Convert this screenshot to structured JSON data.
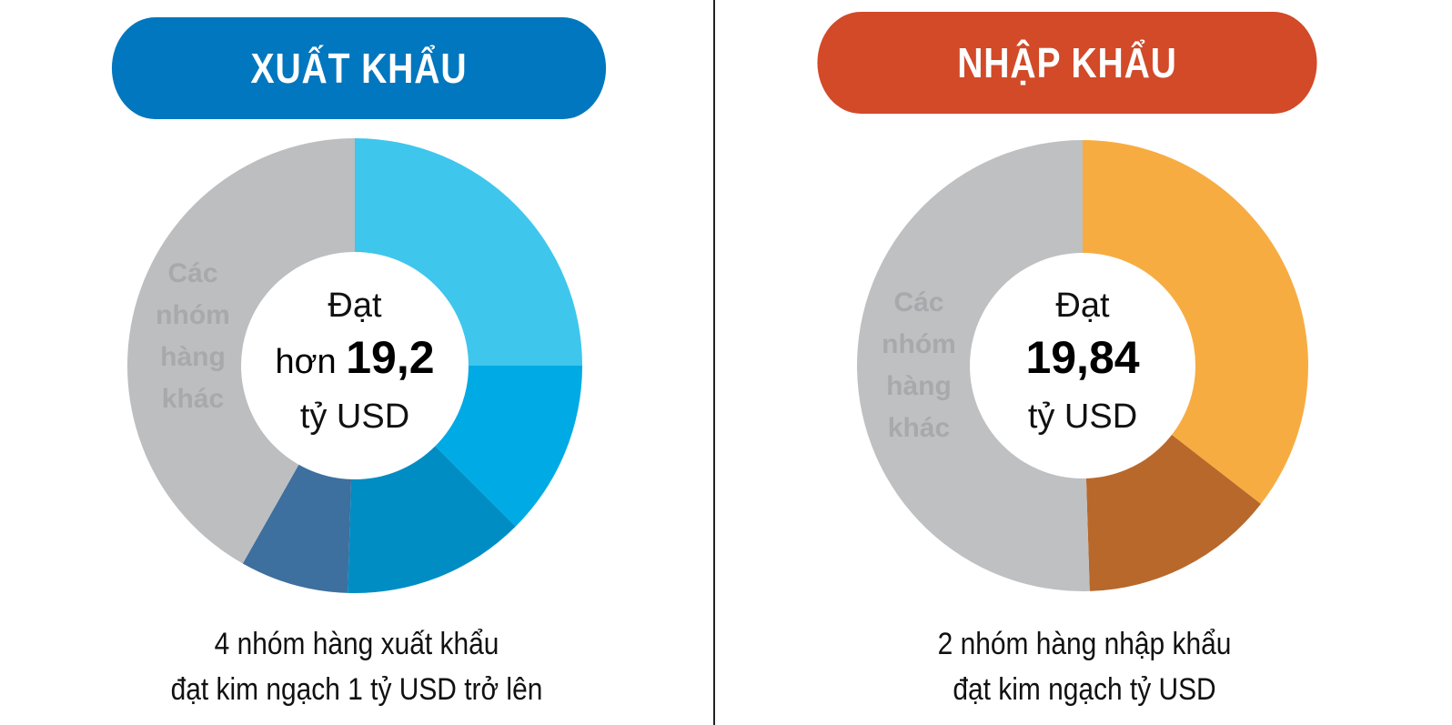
{
  "chart_data": [
    {
      "type": "pie",
      "title": "XUẤT KHẨU",
      "colors": {
        "header": "#0077be",
        "other": "#bcbec0"
      },
      "slices": [
        {
          "label": "",
          "value": 25.0,
          "color": "#3ec6ed"
        },
        {
          "label": "",
          "value": 12.5,
          "color": "#00aae4"
        },
        {
          "label": "",
          "value": 13.0,
          "color": "#008dc4"
        },
        {
          "label": "",
          "value": 7.7,
          "color": "#3d6f9f"
        },
        {
          "label": "Các nhóm hàng khác",
          "value": 41.8,
          "color": "#bcbec0"
        }
      ],
      "center": {
        "line1": "Đạt",
        "prefix": "hơn ",
        "value": "19,2",
        "unit": "tỷ USD"
      },
      "other_label": [
        "Các",
        "nhóm",
        "hàng",
        "khác"
      ],
      "caption": [
        "4 nhóm hàng xuất khẩu",
        "đạt kim ngạch 1 tỷ USD trở lên"
      ]
    },
    {
      "type": "pie",
      "title": "NHẬP KHẨU",
      "colors": {
        "header": "#d24a28",
        "other": "#bfc0c2"
      },
      "slices": [
        {
          "label": "",
          "value": 35.5,
          "color": "#f7ac42"
        },
        {
          "label": "",
          "value": 14.0,
          "color": "#b8682b"
        },
        {
          "label": "Các nhóm hàng khác",
          "value": 50.5,
          "color": "#bfc0c2"
        }
      ],
      "center": {
        "line1": "Đạt",
        "prefix": "",
        "value": "19,84",
        "unit": "tỷ USD"
      },
      "other_label": [
        "Các",
        "nhóm",
        "hàng",
        "khác"
      ],
      "caption": [
        "2 nhóm hàng nhập khẩu",
        "đạt kim ngạch tỷ USD"
      ]
    }
  ]
}
